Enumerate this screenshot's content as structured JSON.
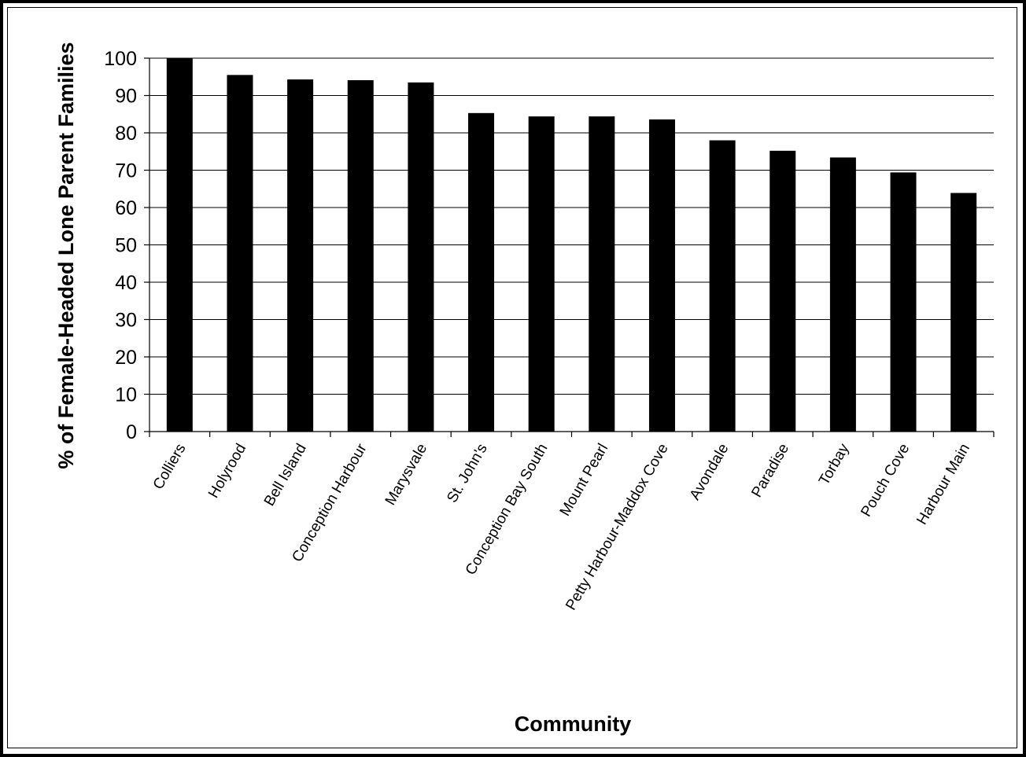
{
  "chart_data": {
    "type": "bar",
    "title": "",
    "xlabel": "Community",
    "ylabel": "% of Female-Headed Lone Parent Families",
    "ylim": [
      0,
      100
    ],
    "yticks": [
      0,
      10,
      20,
      30,
      40,
      50,
      60,
      70,
      80,
      90,
      100
    ],
    "grid": "horizontal",
    "legend": "none",
    "bar_color": "#000000",
    "categories": [
      "Colliers",
      "Holyrood",
      "Bell Island",
      "Conception Harbour",
      "Marysvale",
      "St. John's",
      "Conception Bay South",
      "Mount Pearl",
      "Petty Harbour-Maddox Cove",
      "Avondale",
      "Paradise",
      "Torbay",
      "Pouch Cove",
      "Harbour Main"
    ],
    "values": [
      100,
      95.5,
      94.3,
      94.1,
      93.5,
      85.3,
      84.4,
      84.4,
      83.6,
      78,
      75.2,
      73.4,
      69.4,
      63.9
    ]
  }
}
